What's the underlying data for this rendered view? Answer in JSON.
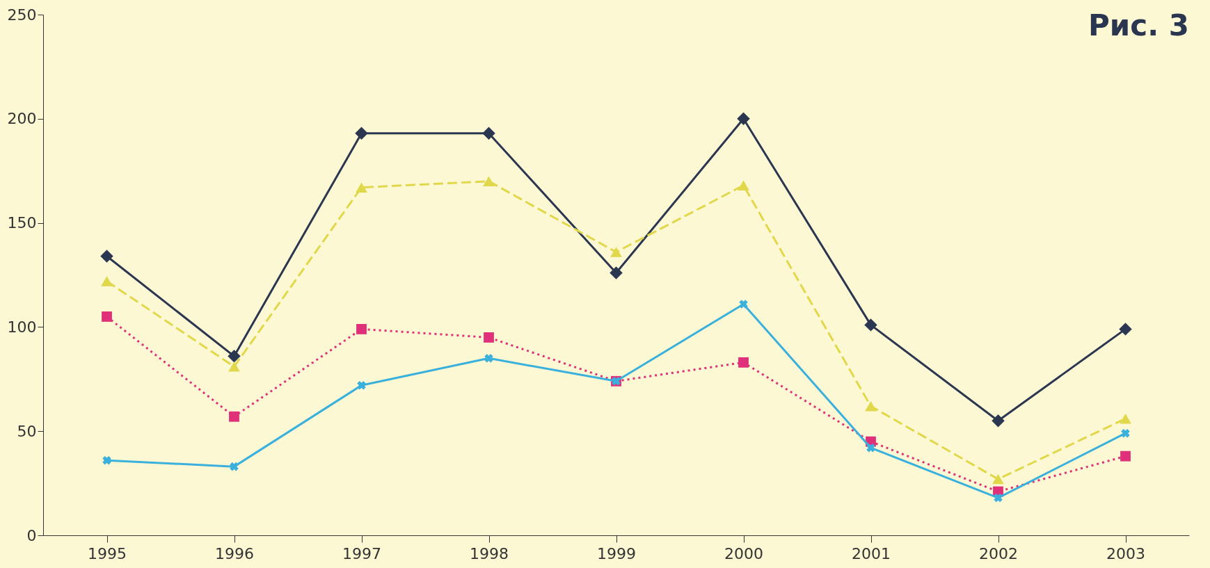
{
  "chart_data": {
    "type": "line",
    "title": "Рис. 3",
    "categories": [
      "1995",
      "1996",
      "1997",
      "1998",
      "1999",
      "2000",
      "2001",
      "2002",
      "2003"
    ],
    "series": [
      {
        "color": "#2b3650",
        "marker": "diamond",
        "line_style": "solid",
        "values": [
          134,
          86,
          193,
          193,
          126,
          200,
          101,
          55,
          99
        ]
      },
      {
        "color": "#e0d84a",
        "marker": "triangle",
        "line_style": "dashed",
        "values": [
          122,
          81,
          167,
          170,
          136,
          168,
          62,
          27,
          56
        ]
      },
      {
        "color": "#e0307a",
        "marker": "square",
        "line_style": "dotted",
        "values": [
          105,
          57,
          99,
          95,
          74,
          83,
          45,
          21,
          38
        ]
      },
      {
        "color": "#3ab0dc",
        "marker": "cross",
        "line_style": "solid",
        "values": [
          36,
          33,
          72,
          85,
          74,
          111,
          42,
          18,
          49
        ]
      }
    ],
    "ylim": [
      0,
      250
    ],
    "yticks": [
      0,
      50,
      100,
      150,
      200,
      250
    ]
  }
}
